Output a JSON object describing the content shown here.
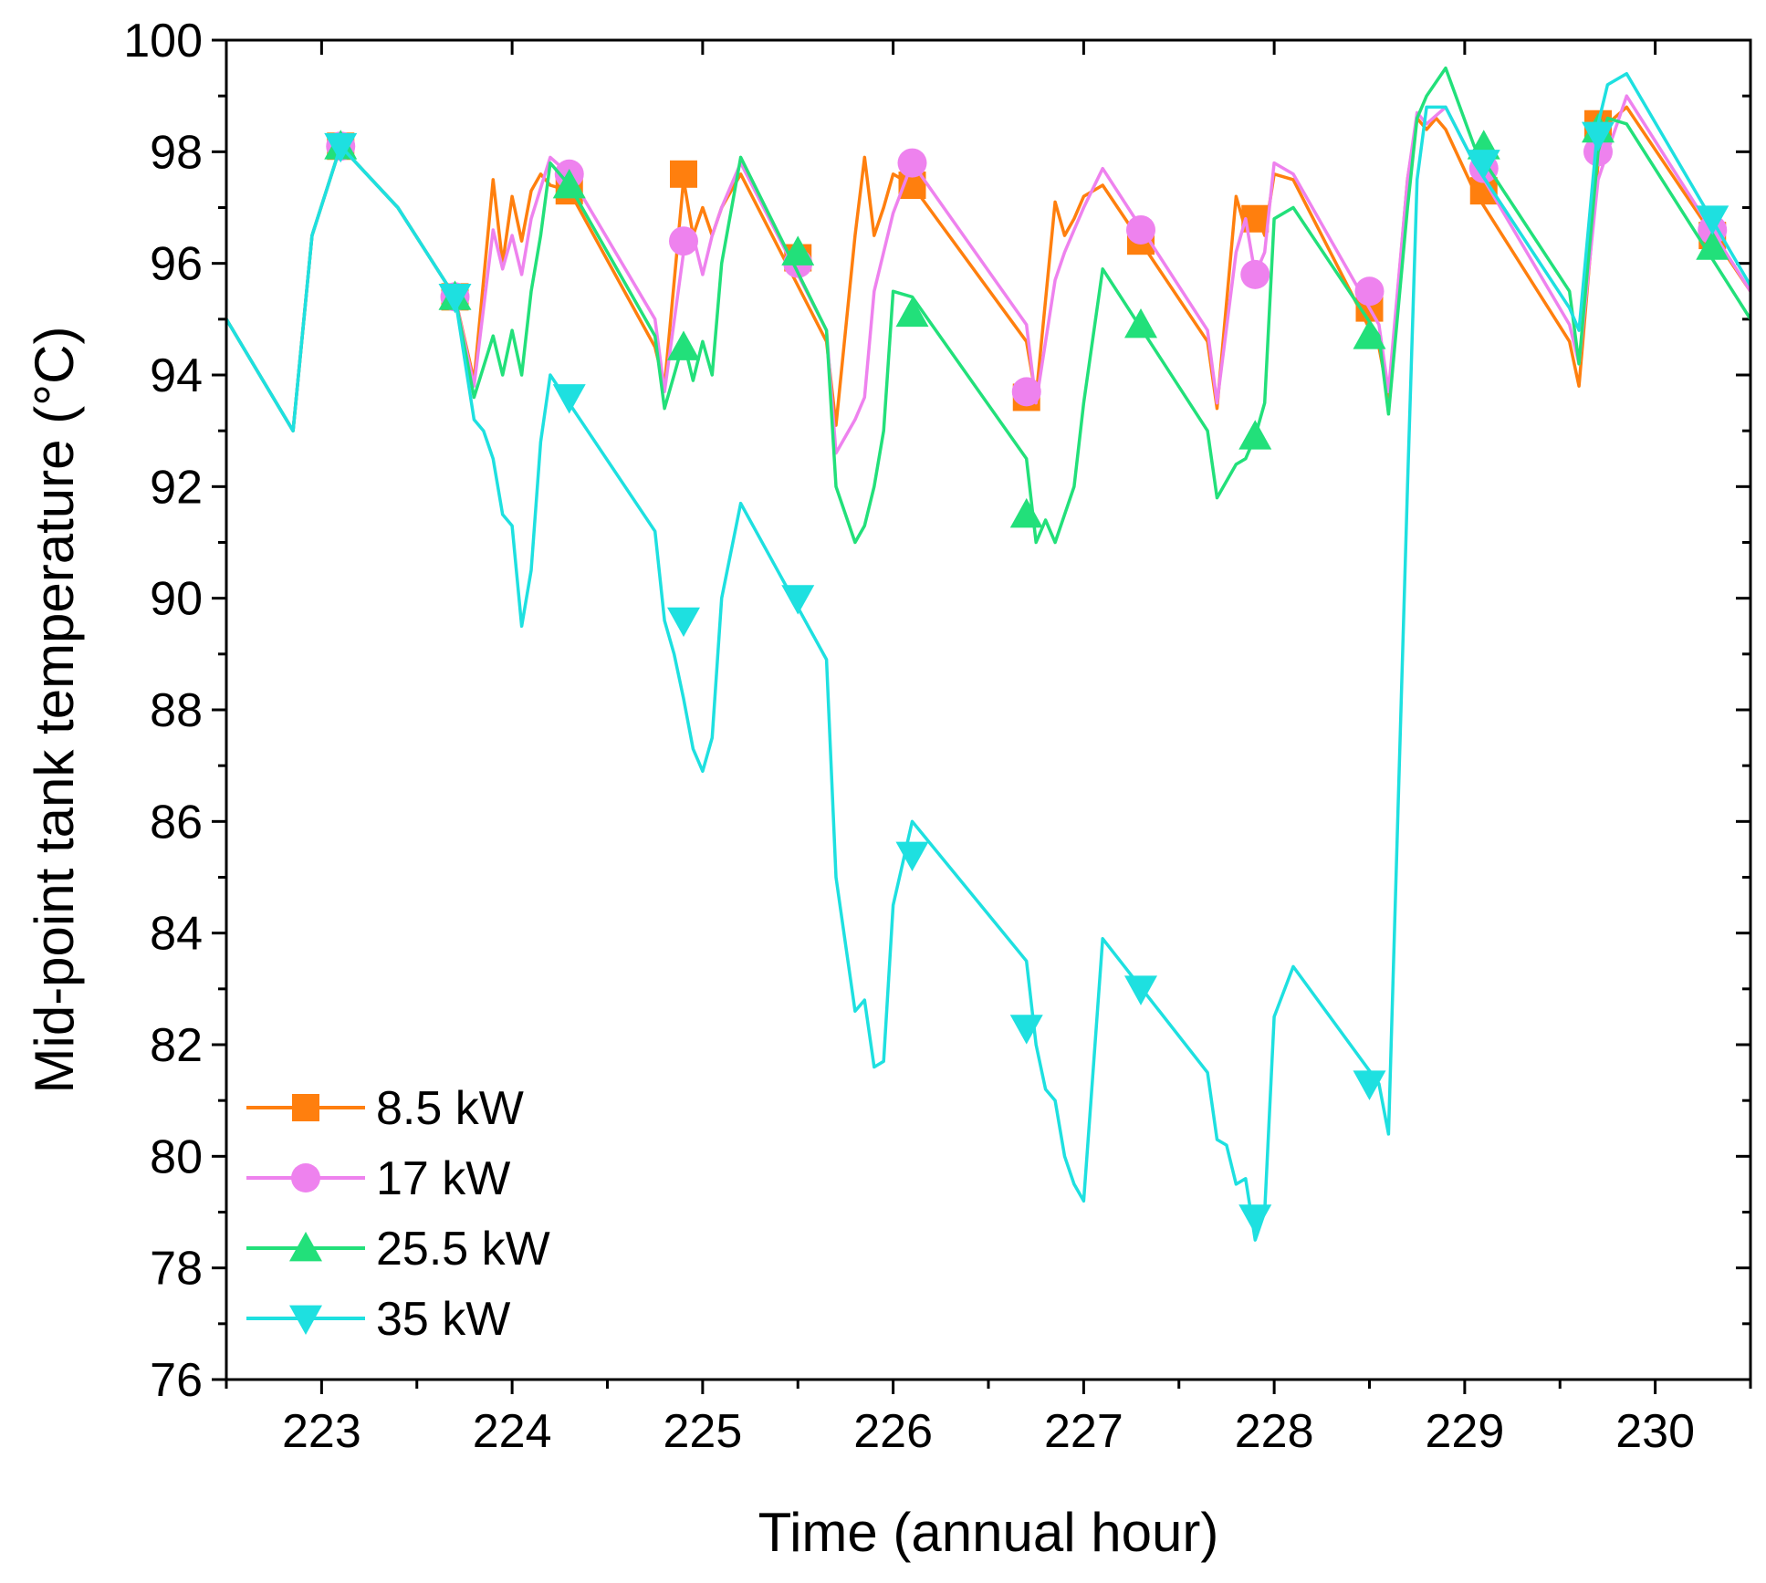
{
  "chart_data": {
    "type": "line",
    "title": "",
    "xlabel": "Time (annual hour)",
    "ylabel": "Mid-point tank temperature (°C)",
    "xlim": [
      222.5,
      230.5
    ],
    "ylim": [
      76,
      100
    ],
    "xticks": [
      223,
      224,
      225,
      226,
      227,
      228,
      229,
      230
    ],
    "yticks": [
      76,
      78,
      80,
      82,
      84,
      86,
      88,
      90,
      92,
      94,
      96,
      98,
      100
    ],
    "legend_position": "bottom-left",
    "series": [
      {
        "name": "8.5 kW",
        "color": "#ff7f0e",
        "marker": "square",
        "x": [
          222.5,
          222.85,
          222.95,
          223.1,
          223.4,
          223.7,
          223.8,
          223.9,
          223.95,
          224.0,
          224.05,
          224.1,
          224.15,
          224.2,
          224.3,
          224.75,
          224.8,
          224.9,
          224.95,
          225.0,
          225.05,
          225.1,
          225.2,
          225.65,
          225.7,
          225.8,
          225.85,
          225.9,
          225.95,
          226.0,
          226.1,
          226.7,
          226.75,
          226.85,
          226.9,
          226.95,
          227.0,
          227.1,
          227.65,
          227.7,
          227.8,
          227.85,
          227.9,
          227.95,
          228.0,
          228.1,
          228.55,
          228.6,
          228.7,
          228.75,
          228.8,
          228.85,
          228.9,
          229.05,
          229.55,
          229.6,
          229.7,
          229.75,
          229.85,
          230.5
        ],
        "y": [
          95.0,
          93.0,
          96.5,
          98.1,
          97.0,
          95.4,
          93.9,
          97.5,
          96.0,
          97.2,
          96.4,
          97.3,
          97.6,
          97.4,
          97.3,
          94.5,
          93.8,
          97.5,
          96.5,
          97.0,
          96.5,
          97.0,
          97.6,
          94.6,
          93.1,
          96.5,
          97.9,
          96.5,
          97.0,
          97.6,
          97.4,
          94.6,
          93.6,
          97.1,
          96.5,
          96.8,
          97.2,
          97.4,
          94.6,
          93.4,
          97.2,
          96.6,
          97.0,
          96.5,
          97.6,
          97.5,
          94.5,
          93.6,
          97.5,
          98.6,
          98.4,
          98.6,
          98.4,
          97.3,
          94.6,
          93.8,
          97.8,
          98.5,
          98.8,
          95.5
        ],
        "markers_x": [
          223.1,
          223.7,
          224.3,
          224.9,
          225.5,
          226.1,
          226.7,
          227.3,
          227.9,
          228.5,
          229.1,
          229.7,
          230.3
        ],
        "markers_y": [
          98.1,
          95.4,
          97.3,
          97.6,
          96.1,
          97.4,
          93.6,
          96.4,
          96.8,
          95.2,
          97.3,
          98.5,
          96.5
        ]
      },
      {
        "name": "17 kW",
        "color": "#ee82ee",
        "marker": "circle",
        "x": [
          222.5,
          222.85,
          222.95,
          223.1,
          223.4,
          223.7,
          223.8,
          223.9,
          223.95,
          224.0,
          224.05,
          224.1,
          224.2,
          224.3,
          224.75,
          224.8,
          224.9,
          224.95,
          225.0,
          225.05,
          225.1,
          225.2,
          225.65,
          225.7,
          225.8,
          225.85,
          225.9,
          226.0,
          226.1,
          226.7,
          226.75,
          226.85,
          226.9,
          226.95,
          227.0,
          227.1,
          227.65,
          227.7,
          227.8,
          227.85,
          227.9,
          227.95,
          228.0,
          228.1,
          228.55,
          228.6,
          228.7,
          228.75,
          228.8,
          228.9,
          229.05,
          229.55,
          229.6,
          229.7,
          229.75,
          229.85,
          230.5
        ],
        "y": [
          95.0,
          93.0,
          96.5,
          98.1,
          97.0,
          95.4,
          93.8,
          96.6,
          95.9,
          96.5,
          95.8,
          96.8,
          97.9,
          97.6,
          95.0,
          93.7,
          96.2,
          96.5,
          95.8,
          96.5,
          97.0,
          97.8,
          94.8,
          92.6,
          93.2,
          93.6,
          95.5,
          96.9,
          97.8,
          94.9,
          93.5,
          95.7,
          96.2,
          96.6,
          97.0,
          97.7,
          94.8,
          93.5,
          96.2,
          96.8,
          95.8,
          96.2,
          97.8,
          97.6,
          94.9,
          93.7,
          97.5,
          98.7,
          98.5,
          98.8,
          97.8,
          94.9,
          94.2,
          97.5,
          98.0,
          99.0,
          95.5
        ],
        "markers_x": [
          223.1,
          223.7,
          224.3,
          224.9,
          225.5,
          226.1,
          226.7,
          227.3,
          227.9,
          228.5,
          229.1,
          229.7,
          230.3
        ],
        "markers_y": [
          98.1,
          95.4,
          97.6,
          96.4,
          96.0,
          97.8,
          93.7,
          96.6,
          95.8,
          95.5,
          97.7,
          98.0,
          96.6
        ]
      },
      {
        "name": "25.5 kW",
        "color": "#22e07a",
        "marker": "triangle-up",
        "x": [
          222.5,
          222.85,
          222.95,
          223.1,
          223.4,
          223.7,
          223.8,
          223.9,
          223.95,
          224.0,
          224.05,
          224.1,
          224.15,
          224.2,
          224.3,
          224.75,
          224.8,
          224.85,
          224.9,
          224.95,
          225.0,
          225.05,
          225.1,
          225.2,
          225.65,
          225.7,
          225.8,
          225.85,
          225.9,
          225.95,
          226.0,
          226.1,
          226.7,
          226.75,
          226.8,
          226.85,
          226.9,
          226.95,
          227.0,
          227.1,
          227.65,
          227.7,
          227.8,
          227.85,
          227.9,
          227.95,
          228.0,
          228.1,
          228.55,
          228.6,
          228.7,
          228.75,
          228.8,
          228.9,
          229.05,
          229.55,
          229.6,
          229.7,
          229.75,
          229.85,
          230.5
        ],
        "y": [
          95.0,
          93.0,
          96.5,
          98.1,
          97.0,
          95.4,
          93.6,
          94.7,
          94.0,
          94.8,
          94.0,
          95.5,
          96.5,
          97.8,
          97.4,
          94.7,
          93.4,
          94.0,
          94.6,
          93.9,
          94.6,
          94.0,
          96.0,
          97.9,
          94.8,
          92.0,
          91.0,
          91.3,
          92.0,
          93.0,
          95.5,
          95.4,
          92.5,
          91.0,
          91.4,
          91.0,
          91.5,
          92.0,
          93.5,
          95.9,
          93.0,
          91.8,
          92.4,
          92.5,
          92.9,
          93.5,
          96.8,
          97.0,
          94.7,
          93.3,
          97.0,
          98.6,
          99.0,
          99.5,
          98.1,
          95.5,
          94.2,
          98.0,
          98.6,
          98.5,
          95.0
        ],
        "markers_x": [
          223.1,
          223.7,
          224.3,
          224.9,
          225.5,
          226.1,
          226.7,
          227.3,
          227.9,
          228.5,
          229.1,
          229.7,
          230.3
        ],
        "markers_y": [
          98.1,
          95.4,
          97.4,
          94.5,
          96.2,
          95.1,
          91.5,
          94.9,
          92.9,
          94.7,
          98.1,
          98.4,
          96.3
        ]
      },
      {
        "name": "35 kW",
        "color": "#1ee0e0",
        "marker": "triangle-down",
        "x": [
          222.5,
          222.85,
          222.95,
          223.1,
          223.4,
          223.7,
          223.8,
          223.85,
          223.9,
          223.95,
          224.0,
          224.05,
          224.1,
          224.15,
          224.2,
          224.75,
          224.8,
          224.85,
          224.9,
          224.95,
          225.0,
          225.05,
          225.1,
          225.2,
          225.65,
          225.7,
          225.8,
          225.85,
          225.9,
          225.95,
          226.0,
          226.1,
          226.7,
          226.75,
          226.8,
          226.85,
          226.9,
          226.95,
          227.0,
          227.1,
          227.65,
          227.7,
          227.75,
          227.8,
          227.85,
          227.9,
          227.95,
          228.0,
          228.1,
          228.55,
          228.6,
          228.7,
          228.75,
          228.8,
          228.9,
          229.05,
          229.55,
          229.6,
          229.7,
          229.75,
          229.85,
          230.5
        ],
        "y": [
          95.0,
          93.0,
          96.5,
          98.1,
          97.0,
          95.4,
          93.2,
          93.0,
          92.5,
          91.5,
          91.3,
          89.5,
          90.5,
          92.8,
          94.0,
          91.2,
          89.6,
          89.0,
          88.2,
          87.3,
          86.9,
          87.5,
          90.0,
          91.7,
          88.9,
          85.0,
          82.6,
          82.8,
          81.6,
          81.7,
          84.5,
          86.0,
          83.5,
          82.0,
          81.2,
          81.0,
          80.0,
          79.5,
          79.2,
          83.9,
          81.5,
          80.3,
          80.2,
          79.5,
          79.6,
          78.5,
          79.0,
          82.5,
          83.4,
          81.3,
          80.4,
          92.0,
          97.5,
          98.8,
          98.8,
          97.8,
          95.2,
          94.8,
          98.5,
          99.2,
          99.4,
          95.6
        ],
        "markers_x": [
          223.1,
          223.7,
          224.3,
          224.9,
          225.5,
          226.1,
          226.7,
          227.3,
          227.9,
          228.5,
          229.1,
          229.7,
          230.3
        ],
        "markers_y": [
          98.1,
          95.4,
          93.6,
          89.6,
          90.0,
          85.4,
          82.3,
          83.0,
          78.9,
          81.3,
          97.8,
          98.3,
          96.8
        ]
      }
    ]
  }
}
